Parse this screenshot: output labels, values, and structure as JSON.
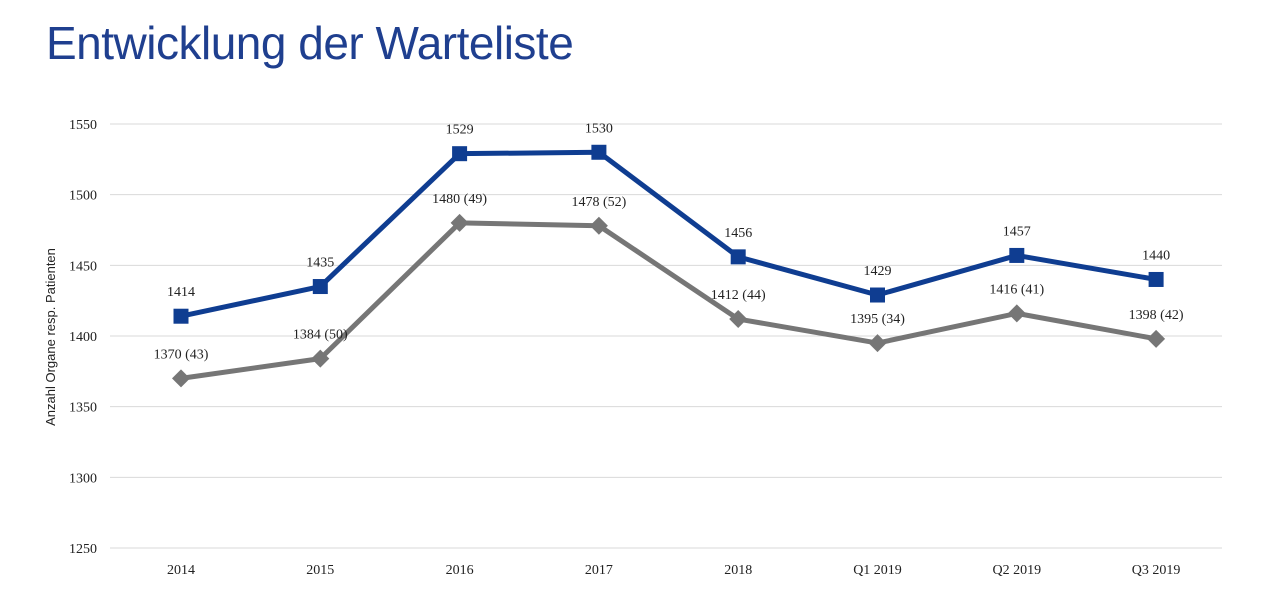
{
  "page": {
    "title": "Entwicklung der Warteliste"
  },
  "chart_data": {
    "type": "line",
    "title": "Entwicklung der Warteliste",
    "xlabel": "",
    "ylabel": "Anzahl Organe resp. Patienten",
    "categories": [
      "2014",
      "2015",
      "2016",
      "2017",
      "2018",
      "Q1  2019",
      "Q2 2019",
      "Q3 2019"
    ],
    "ylim": [
      1250,
      1550
    ],
    "yticks": [
      "1250",
      "1300",
      "1350",
      "1400",
      "1450",
      "1500",
      "1550"
    ],
    "grid": true,
    "series": [
      {
        "color": "#0f3d91",
        "marker": "square",
        "values": [
          1414,
          1435,
          1529,
          1530,
          1456,
          1429,
          1457,
          1440
        ],
        "labels": [
          "1414",
          "1435",
          "1529",
          "1530",
          "1456",
          "1429",
          "1457",
          "1440"
        ]
      },
      {
        "color": "#767676",
        "marker": "diamond",
        "values": [
          1370,
          1384,
          1480,
          1478,
          1412,
          1395,
          1416,
          1398
        ],
        "labels": [
          "1370 (43)",
          "1384 (50)",
          "1480 (49)",
          "1478 (52)",
          "1412 (44)",
          "1395 (34)",
          "1416 (41)",
          "1398 (42)"
        ]
      }
    ]
  }
}
